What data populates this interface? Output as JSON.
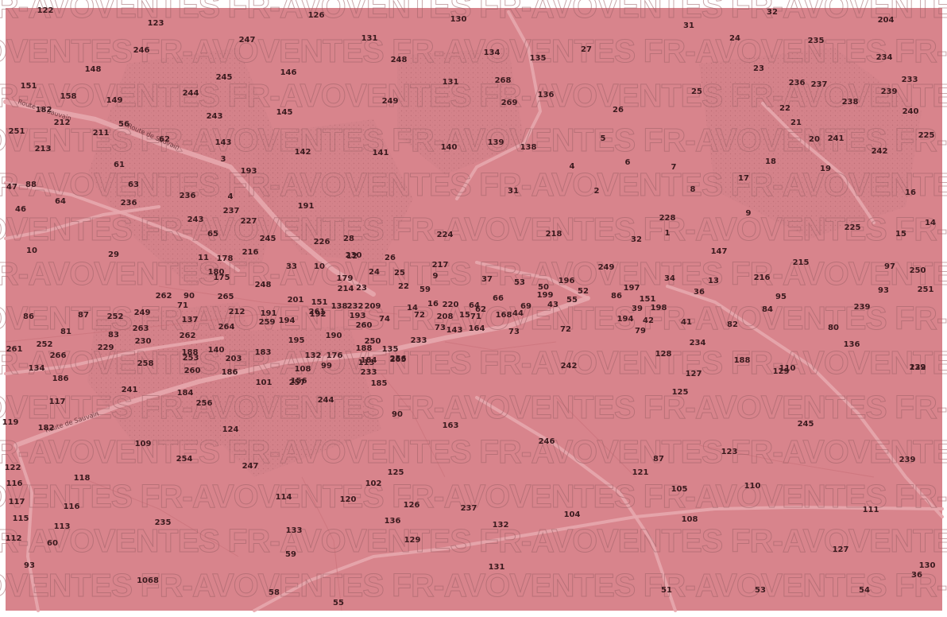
{
  "map": {
    "background": "#d8848c",
    "border": "#ffffff",
    "road_color": "#e7a7ad",
    "text_color": "#3a1a1e",
    "highlight_color": "#2e7d32",
    "watermark": "FR-AVOVENTES",
    "highlighted_parcel": "43",
    "road_labels": [
      "Route de Sauvain",
      "Route de Sauvain",
      "Route de Sauvain"
    ],
    "parcels": [
      "122",
      "126",
      "130",
      "32",
      "204",
      "123",
      "247",
      "131",
      "31",
      "24",
      "235",
      "246",
      "134",
      "135",
      "27",
      "148",
      "248",
      "23",
      "234",
      "245",
      "146",
      "131",
      "268",
      "236",
      "237",
      "233",
      "151",
      "158",
      "149",
      "244",
      "136",
      "25",
      "239",
      "238",
      "269",
      "249",
      "182",
      "212",
      "243",
      "145",
      "22",
      "26",
      "21",
      "240",
      "251",
      "211",
      "56",
      "62",
      "139",
      "138",
      "5",
      "20",
      "241",
      "225",
      "213",
      "143",
      "142",
      "141",
      "140",
      "4",
      "6",
      "7",
      "18",
      "19",
      "242",
      "61",
      "193",
      "17",
      "31",
      "8",
      "88",
      "47",
      "63",
      "3",
      "236",
      "4",
      "191",
      "2",
      "236",
      "46",
      "64",
      "237",
      "228",
      "9",
      "16",
      "243",
      "227",
      "225",
      "15",
      "14",
      "245",
      "224",
      "218",
      "32",
      "1",
      "10",
      "65",
      "226",
      "28",
      "29",
      "216",
      "147",
      "11",
      "178",
      "230",
      "26",
      "217",
      "215",
      "13",
      "97",
      "250",
      "249",
      "33",
      "10",
      "9",
      "216",
      "12",
      "36",
      "175",
      "180",
      "179",
      "24",
      "25",
      "37",
      "53",
      "50",
      "196",
      "34",
      "86",
      "93",
      "251",
      "248",
      "214",
      "23",
      "22",
      "59",
      "199",
      "52",
      "197",
      "151",
      "95",
      "90",
      "265",
      "71",
      "212",
      "262",
      "261",
      "201",
      "151",
      "138",
      "232",
      "209",
      "14",
      "16",
      "220",
      "64",
      "66",
      "69",
      "43",
      "55",
      "39",
      "198",
      "239",
      "86",
      "87",
      "252",
      "249",
      "191",
      "192",
      "193",
      "72",
      "208",
      "15",
      "62",
      "71",
      "168",
      "44",
      "194",
      "42",
      "41",
      "82",
      "84",
      "137",
      "263",
      "264",
      "259",
      "194",
      "260",
      "74",
      "73",
      "143",
      "164",
      "73",
      "72",
      "79",
      "80",
      "81",
      "83",
      "262",
      "190",
      "195",
      "250",
      "230",
      "229",
      "140",
      "188",
      "183",
      "188",
      "132",
      "176",
      "135",
      "203",
      "136",
      "261",
      "252",
      "266",
      "253",
      "265",
      "233",
      "134",
      "186",
      "184",
      "113",
      "108",
      "156",
      "99",
      "256",
      "128",
      "234",
      "188",
      "110",
      "239",
      "258",
      "260",
      "233",
      "127",
      "129",
      "122",
      "186",
      "241",
      "101",
      "257",
      "185",
      "242",
      "125",
      "184",
      "244",
      "117",
      "256",
      "90",
      "163",
      "245",
      "119",
      "182",
      "124",
      "246",
      "109",
      "123",
      "254",
      "247",
      "87",
      "239",
      "122",
      "116",
      "118",
      "121",
      "125",
      "102",
      "105",
      "110",
      "117",
      "116",
      "114",
      "120",
      "126",
      "237",
      "104",
      "108",
      "115",
      "113",
      "235",
      "136",
      "132",
      "111",
      "112",
      "60",
      "133",
      "129",
      "127",
      "93",
      "59",
      "131",
      "130",
      "36",
      "1068",
      "58",
      "51",
      "53",
      "54",
      "55"
    ]
  }
}
